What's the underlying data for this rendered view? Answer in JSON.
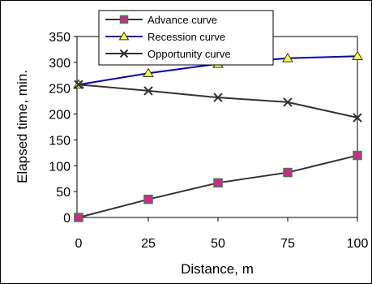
{
  "chart_data": {
    "type": "line",
    "x": [
      0,
      25,
      50,
      75,
      100
    ],
    "xlabel": "Distance, m",
    "ylabel": "Elapsed time, min.",
    "xticks": [
      "0",
      "25",
      "50",
      "75",
      "100"
    ],
    "yticks": [
      "0",
      "50",
      "100",
      "150",
      "200",
      "250",
      "300",
      "350"
    ],
    "xlim": [
      0,
      100
    ],
    "ylim": [
      0,
      350
    ],
    "grid": false,
    "legend_position": "top",
    "series": [
      {
        "name": "Advance curve",
        "values": [
          0,
          35,
          67,
          87,
          120
        ],
        "line_color": "#333333",
        "marker": "square",
        "marker_fill": "#e41aa0",
        "marker_stroke": "#2d8c2d"
      },
      {
        "name": "Recession curve",
        "values": [
          257,
          279,
          297,
          308,
          312
        ],
        "line_color": "#0000cc",
        "marker": "triangle",
        "marker_fill": "#ffff33",
        "marker_stroke": "#333333"
      },
      {
        "name": "Opportunity curve",
        "values": [
          257,
          245,
          232,
          223,
          193
        ],
        "line_color": "#333333",
        "marker": "x",
        "marker_fill": "none",
        "marker_stroke": "#333333"
      }
    ]
  }
}
